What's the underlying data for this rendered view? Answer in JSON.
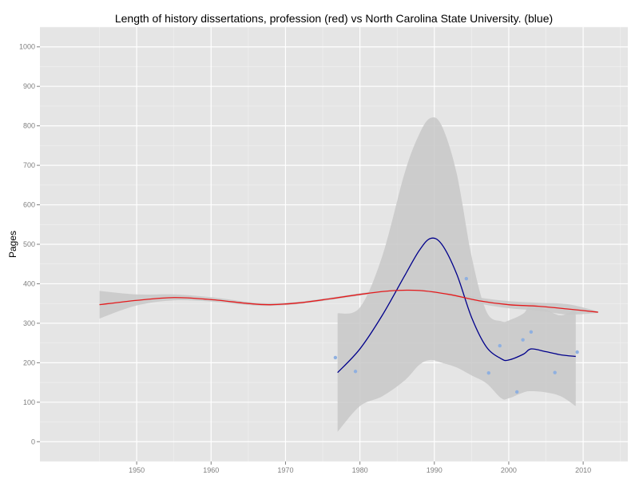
{
  "chart_data": {
    "type": "scatter",
    "title": "Length of history dissertations, profession (red) vs North Carolina State University. (blue)",
    "xlabel": "",
    "ylabel": "Pages",
    "xlim": [
      1937,
      2016
    ],
    "ylim": [
      -50,
      1050
    ],
    "x_ticks": [
      1950,
      1960,
      1970,
      1980,
      1990,
      2000,
      2010
    ],
    "y_ticks": [
      0,
      100,
      200,
      300,
      400,
      500,
      600,
      700,
      800,
      900,
      1000
    ],
    "grid": true,
    "panel_background": "#e5e5e5",
    "grid_color": "#ffffff",
    "band_color": "#c8c8c8",
    "series": [
      {
        "kind": "points",
        "color": "#8fb0e0",
        "x": [
          1976.7,
          1979.4,
          1994.3,
          1997.3,
          1998.8,
          2001.1,
          2001.9,
          2003.0,
          2006.2,
          2009.2
        ],
        "y": [
          213,
          178,
          413,
          174,
          243,
          126,
          258,
          278,
          175,
          227
        ]
      },
      {
        "kind": "smooth",
        "color": "#00008b",
        "x": [
          1977,
          1980,
          1983,
          1986,
          1988,
          1989.5,
          1991,
          1993,
          1995,
          1997,
          1999,
          2000,
          2002,
          2003,
          2005,
          2007,
          2009
        ],
        "y": [
          175,
          235,
          320,
          420,
          485,
          515,
          500,
          425,
          315,
          240,
          210,
          207,
          222,
          235,
          228,
          220,
          216
        ],
        "band_lower": [
          25,
          90,
          115,
          155,
          195,
          207,
          200,
          188,
          168,
          148,
          110,
          110,
          125,
          128,
          125,
          115,
          90
        ],
        "band_upper": [
          325,
          340,
          470,
          680,
          780,
          820,
          800,
          680,
          470,
          330,
          305,
          307,
          325,
          348,
          335,
          320,
          335
        ]
      },
      {
        "kind": "smooth",
        "color": "#e41a1c",
        "x": [
          1945,
          1950,
          1955,
          1960,
          1965,
          1968,
          1972,
          1976,
          1980,
          1984,
          1988,
          1992,
          1996,
          2000,
          2004,
          2008,
          2012
        ],
        "y": [
          347,
          358,
          365,
          360,
          350,
          347,
          352,
          362,
          373,
          382,
          383,
          373,
          357,
          347,
          343,
          336,
          328
        ],
        "band_lower": [
          312,
          345,
          358,
          355,
          346,
          344,
          349,
          359,
          370,
          380,
          380,
          368,
          350,
          338,
          332,
          322,
          326
        ],
        "band_upper": [
          382,
          373,
          373,
          366,
          354,
          351,
          355,
          365,
          376,
          385,
          386,
          378,
          365,
          356,
          352,
          348,
          330
        ]
      }
    ]
  }
}
